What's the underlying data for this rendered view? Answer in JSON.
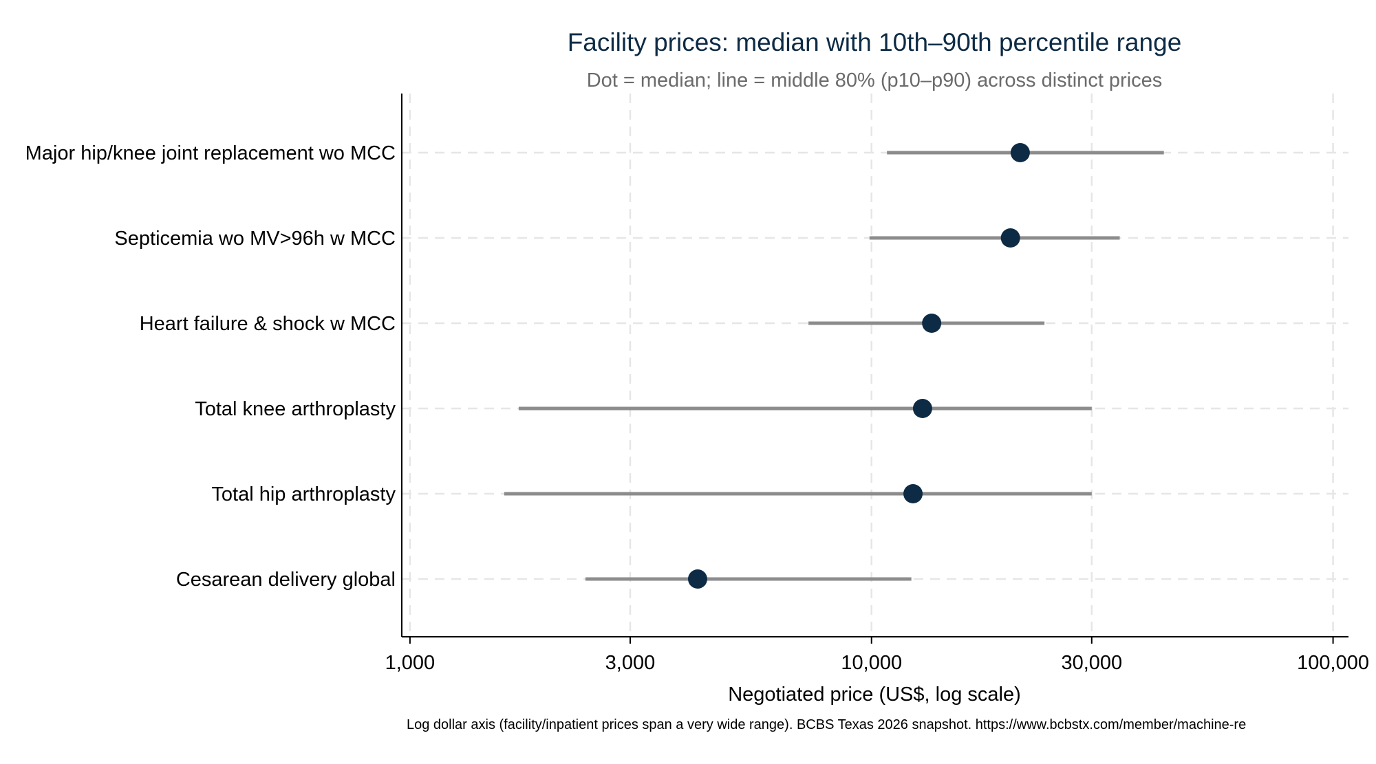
{
  "chart_data": {
    "type": "dot-range",
    "title": "Facility prices: median with 10th–90th percentile range",
    "subtitle": "Dot = median; line = middle 80% (p10–p90) across distinct prices",
    "xlabel": "Negotiated price (US$, log scale)",
    "note": "Log dollar axis (facility/inpatient prices span a very wide range). BCBS Texas 2026 snapshot. https://www.bcbstx.com/member/machine-re",
    "x_scale": "log",
    "xlim": [
      960,
      108000
    ],
    "x_ticks": [
      1000,
      3000,
      10000,
      30000,
      100000
    ],
    "x_tick_labels": [
      "1,000",
      "3,000",
      "10,000",
      "30,000",
      "100,000"
    ],
    "grid": true,
    "categories": [
      "Major hip/knee joint replacement wo MCC",
      "Septicemia wo MV>96h w MCC",
      "Heart failure & shock w MCC",
      "Total knee arthroplasty",
      "Total hip arthroplasty",
      "Cesarean delivery global"
    ],
    "series": [
      {
        "name": "p10",
        "values": [
          10800,
          9900,
          7300,
          1720,
          1600,
          2400
        ]
      },
      {
        "name": "median",
        "values": [
          21000,
          20000,
          13500,
          12900,
          12300,
          4200
        ]
      },
      {
        "name": "p90",
        "values": [
          43000,
          34500,
          23700,
          30000,
          30000,
          12200
        ]
      }
    ],
    "colors": {
      "dot": "#0d2b45",
      "range": "#8c8c8c",
      "grid": "#e6e6e6",
      "axis": "#000000"
    }
  }
}
